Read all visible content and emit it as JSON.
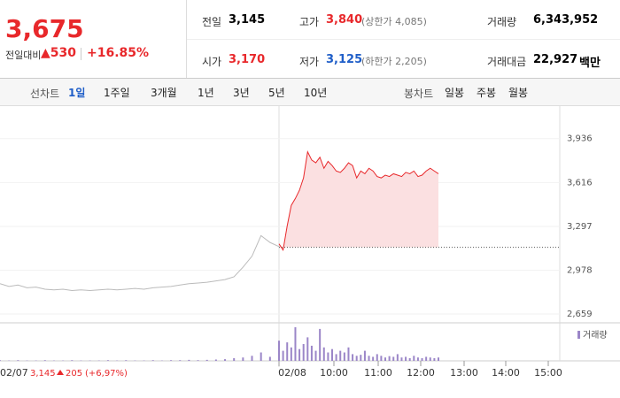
{
  "header": {
    "price": "3,675",
    "change_label": "전일대비",
    "change": "530",
    "change_rate": "+16.85%",
    "stats": [
      {
        "label": "전일",
        "value": "3,145"
      },
      {
        "label": "고가",
        "value": "3,840",
        "note": "(상한가 4,085)"
      },
      {
        "label": "거래량",
        "value": "6,343,952"
      },
      {
        "label": "시가",
        "value": "3,170"
      },
      {
        "label": "저가",
        "value": "3,125",
        "note": "(하한가 2,205)"
      },
      {
        "label": "거래대금",
        "value": "22,927",
        "unit": "백만"
      }
    ]
  },
  "tabs": {
    "line_label": "선차트",
    "line": [
      "1일",
      "1주일",
      "3개월",
      "1년",
      "3년",
      "5년",
      "10년"
    ],
    "candle_label": "봉차트",
    "candle": [
      "일봉",
      "주봉",
      "월봉"
    ]
  },
  "chart_data": {
    "type": "line",
    "color": "#e8282b",
    "prev_color": "#bbbbbb",
    "previous_close": 3145,
    "prev_values": [
      2880,
      2860,
      2870,
      2850,
      2855,
      2840,
      2835,
      2840,
      2830,
      2835,
      2830,
      2835,
      2840,
      2835,
      2840,
      2845,
      2840,
      2850,
      2855,
      2860,
      2870,
      2880,
      2885,
      2890,
      2900,
      2910,
      2930,
      3000,
      3080,
      3230,
      3180,
      3150
    ],
    "values": [
      3170,
      3125,
      3300,
      3450,
      3500,
      3560,
      3650,
      3840,
      3780,
      3760,
      3800,
      3720,
      3770,
      3740,
      3700,
      3690,
      3720,
      3760,
      3740,
      3650,
      3700,
      3680,
      3720,
      3700,
      3660,
      3650,
      3670,
      3660,
      3680,
      3670,
      3660,
      3690,
      3680,
      3700,
      3660,
      3670,
      3700,
      3720,
      3700,
      3680
    ],
    "ylim": [
      2595,
      4108
    ],
    "yticks": [
      {
        "value": 2659,
        "label": "2,659"
      },
      {
        "value": 2978,
        "label": "2,978"
      },
      {
        "value": 3297,
        "label": "3,297"
      },
      {
        "value": 3616,
        "label": "3,616"
      },
      {
        "value": 3936,
        "label": "3,936"
      }
    ],
    "xticks": [
      "02/08",
      "10:00",
      "11:00",
      "12:00",
      "13:00",
      "14:00",
      "15:00"
    ],
    "volume": {
      "label": "거래량",
      "color": "#9b86c8",
      "prev_values": [
        2,
        1,
        2,
        1,
        1,
        2,
        1,
        1,
        2,
        1,
        1,
        1,
        2,
        1,
        2,
        1,
        1,
        2,
        1,
        2,
        2,
        3,
        2,
        3,
        4,
        5,
        8,
        10,
        15,
        25,
        12,
        8
      ],
      "values": [
        60,
        30,
        55,
        40,
        100,
        35,
        50,
        70,
        45,
        30,
        95,
        40,
        25,
        35,
        20,
        30,
        25,
        40,
        20,
        15,
        18,
        30,
        15,
        12,
        20,
        15,
        10,
        14,
        12,
        20,
        10,
        12,
        8,
        15,
        10,
        8,
        12,
        10,
        8,
        10
      ]
    }
  },
  "footer": {
    "date": "02/07",
    "close": "3,145",
    "change": "205",
    "rate": "(+6,97%)"
  }
}
